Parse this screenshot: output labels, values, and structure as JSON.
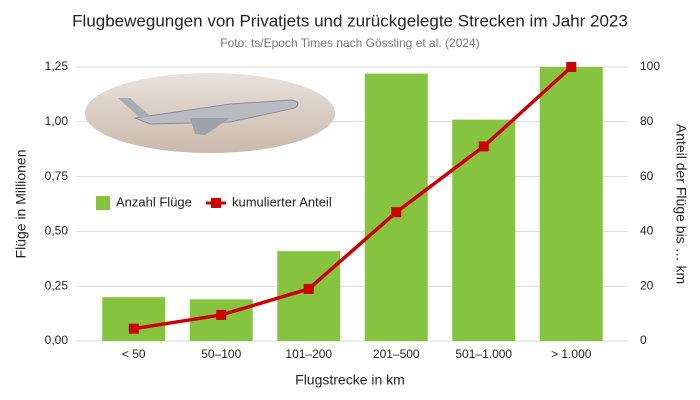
{
  "chart_data": {
    "type": "bar",
    "title": "Flugbewegungen von Privatjets und zurückgelegte Strecken im Jahr 2023",
    "subtitle": "Foto: ts/Epoch Times nach Gössling et al. (2024)",
    "x_label": "Flugstrecke in km",
    "y_label": "Flüge in Millionen",
    "y2_label": "Anteil der Flüge bis … km",
    "categories": [
      "< 50",
      "50–100",
      "101–200",
      "201–500",
      "501–1.000",
      "> 1.000"
    ],
    "series": [
      {
        "name": "Anzahl Flüge",
        "type": "bar",
        "color": "#86c440",
        "values": [
          0.2,
          0.19,
          0.41,
          1.22,
          1.01,
          1.25
        ]
      },
      {
        "name": "kumulierter Anteil",
        "type": "line",
        "axis": "y2",
        "color": "#cc0000",
        "values": [
          4.5,
          9.5,
          19,
          47,
          71,
          100
        ]
      }
    ],
    "ylim": [
      0,
      1.25
    ],
    "yticks": [
      {
        "value": 0,
        "label": "0,00"
      },
      {
        "value": 0.25,
        "label": "0,25"
      },
      {
        "value": 0.5,
        "label": "0,50"
      },
      {
        "value": 0.75,
        "label": "0,75"
      },
      {
        "value": 1,
        "label": "1,00"
      },
      {
        "value": 1.25,
        "label": "1,25"
      }
    ],
    "y2lim": [
      0,
      100
    ],
    "y2ticks": [
      0,
      20,
      40,
      60,
      80,
      100
    ],
    "grid": true
  }
}
